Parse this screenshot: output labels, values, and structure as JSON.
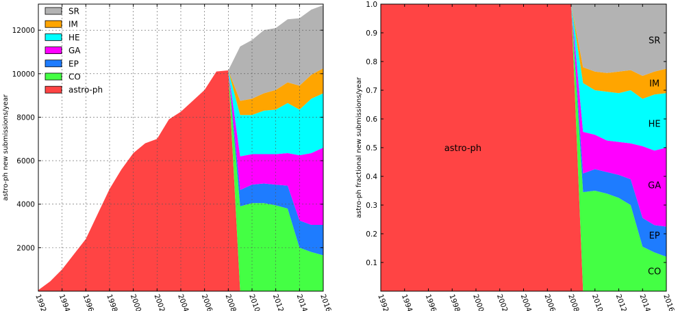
{
  "colors": {
    "astro-ph": "#ff4444",
    "CO": "#44ff44",
    "EP": "#1e7cff",
    "GA": "#ff00ff",
    "HE": "#00ffff",
    "IM": "#ffa500",
    "SR": "#b3b3b3"
  },
  "chart_data": [
    {
      "type": "area",
      "stacked": true,
      "ylabel": "astro-ph new submissions/year",
      "xlim": [
        1992,
        2016
      ],
      "ylim": [
        0,
        13200
      ],
      "xticks": [
        "1992",
        "1994",
        "1996",
        "1998",
        "2000",
        "2002",
        "2004",
        "2006",
        "2008",
        "2010",
        "2012",
        "2014",
        "2016"
      ],
      "yticks": [
        "2000",
        "4000",
        "6000",
        "8000",
        "10000",
        "12000"
      ],
      "grid": true,
      "legend": {
        "placement": "top-left",
        "entries": [
          "SR",
          "IM",
          "HE",
          "GA",
          "EP",
          "CO",
          "astro-ph"
        ]
      },
      "x": [
        1992,
        1993,
        1994,
        1995,
        1996,
        1997,
        1998,
        1999,
        2000,
        2001,
        2002,
        2003,
        2004,
        2005,
        2006,
        2007,
        2008,
        2009,
        2010,
        2011,
        2012,
        2013,
        2014,
        2015,
        2016
      ],
      "series": [
        {
          "name": "astro-ph",
          "values": [
            50,
            450,
            1000,
            1700,
            2400,
            3550,
            4700,
            5600,
            6350,
            6800,
            7000,
            7900,
            8250,
            8750,
            9250,
            10100,
            10150,
            0,
            0,
            0,
            0,
            0,
            0,
            0,
            0
          ]
        },
        {
          "name": "CO",
          "values": [
            0,
            0,
            0,
            0,
            0,
            0,
            0,
            0,
            0,
            0,
            0,
            0,
            0,
            0,
            0,
            0,
            0,
            3900,
            4050,
            4050,
            3950,
            3800,
            2000,
            1800,
            1650
          ]
        },
        {
          "name": "EP",
          "values": [
            0,
            0,
            0,
            0,
            0,
            0,
            0,
            0,
            0,
            0,
            0,
            0,
            0,
            0,
            0,
            0,
            0,
            750,
            850,
            900,
            950,
            1050,
            1250,
            1250,
            1400
          ]
        },
        {
          "name": "GA",
          "values": [
            0,
            0,
            0,
            0,
            0,
            0,
            0,
            0,
            0,
            0,
            0,
            0,
            0,
            0,
            0,
            0,
            0,
            1550,
            1400,
            1350,
            1400,
            1500,
            3000,
            3300,
            3550
          ]
        },
        {
          "name": "HE",
          "values": [
            0,
            0,
            0,
            0,
            0,
            0,
            0,
            0,
            0,
            0,
            0,
            0,
            0,
            0,
            0,
            0,
            0,
            1900,
            1800,
            2000,
            2050,
            2300,
            2100,
            2500,
            2500
          ]
        },
        {
          "name": "IM",
          "values": [
            0,
            0,
            0,
            0,
            0,
            0,
            0,
            0,
            0,
            0,
            0,
            0,
            0,
            0,
            0,
            0,
            0,
            650,
            750,
            800,
            900,
            950,
            1100,
            1100,
            1150
          ]
        },
        {
          "name": "SR",
          "values": [
            0,
            0,
            0,
            0,
            0,
            0,
            0,
            0,
            0,
            0,
            0,
            0,
            0,
            0,
            0,
            0,
            0,
            2500,
            2700,
            2900,
            2850,
            2900,
            3100,
            3000,
            2900
          ]
        }
      ]
    },
    {
      "type": "area",
      "stacked": true,
      "ylabel": "astro-ph fractional new submissions/year",
      "xlim": [
        1992,
        2016
      ],
      "ylim": [
        0,
        1.0
      ],
      "xticks": [
        "1992",
        "1994",
        "1996",
        "1998",
        "2000",
        "2002",
        "2004",
        "2006",
        "2008",
        "2010",
        "2012",
        "2014",
        "2016"
      ],
      "yticks": [
        "0.1",
        "0.2",
        "0.3",
        "0.4",
        "0.5",
        "0.6",
        "0.7",
        "0.8",
        "0.9",
        "1.0"
      ],
      "grid": false,
      "annotations": [
        "astro-ph",
        "CO",
        "EP",
        "GA",
        "HE",
        "IM",
        "SR"
      ],
      "x": [
        1992,
        1993,
        1994,
        1995,
        1996,
        1997,
        1998,
        1999,
        2000,
        2001,
        2002,
        2003,
        2004,
        2005,
        2006,
        2007,
        2008,
        2009,
        2010,
        2011,
        2012,
        2013,
        2014,
        2015,
        2016
      ],
      "series": [
        {
          "name": "astro-ph",
          "values": [
            1,
            1,
            1,
            1,
            1,
            1,
            1,
            1,
            1,
            1,
            1,
            1,
            1,
            1,
            1,
            1,
            1,
            0,
            0,
            0,
            0,
            0,
            0,
            0,
            0
          ]
        },
        {
          "name": "CO",
          "values": [
            0,
            0,
            0,
            0,
            0,
            0,
            0,
            0,
            0,
            0,
            0,
            0,
            0,
            0,
            0,
            0,
            0,
            0.345,
            0.35,
            0.34,
            0.325,
            0.3,
            0.155,
            0.135,
            0.12
          ]
        },
        {
          "name": "EP",
          "values": [
            0,
            0,
            0,
            0,
            0,
            0,
            0,
            0,
            0,
            0,
            0,
            0,
            0,
            0,
            0,
            0,
            0,
            0.065,
            0.075,
            0.075,
            0.08,
            0.09,
            0.1,
            0.095,
            0.105
          ]
        },
        {
          "name": "GA",
          "values": [
            0,
            0,
            0,
            0,
            0,
            0,
            0,
            0,
            0,
            0,
            0,
            0,
            0,
            0,
            0,
            0,
            0,
            0.145,
            0.12,
            0.11,
            0.115,
            0.125,
            0.25,
            0.26,
            0.275
          ]
        },
        {
          "name": "HE",
          "values": [
            0,
            0,
            0,
            0,
            0,
            0,
            0,
            0,
            0,
            0,
            0,
            0,
            0,
            0,
            0,
            0,
            0,
            0.17,
            0.155,
            0.17,
            0.17,
            0.185,
            0.165,
            0.195,
            0.19
          ]
        },
        {
          "name": "IM",
          "values": [
            0,
            0,
            0,
            0,
            0,
            0,
            0,
            0,
            0,
            0,
            0,
            0,
            0,
            0,
            0,
            0,
            0,
            0.055,
            0.065,
            0.065,
            0.075,
            0.07,
            0.08,
            0.08,
            0.085
          ]
        },
        {
          "name": "SR",
          "values": [
            0,
            0,
            0,
            0,
            0,
            0,
            0,
            0,
            0,
            0,
            0,
            0,
            0,
            0,
            0,
            0,
            0,
            0.22,
            0.235,
            0.24,
            0.235,
            0.23,
            0.25,
            0.235,
            0.225
          ]
        }
      ]
    }
  ]
}
